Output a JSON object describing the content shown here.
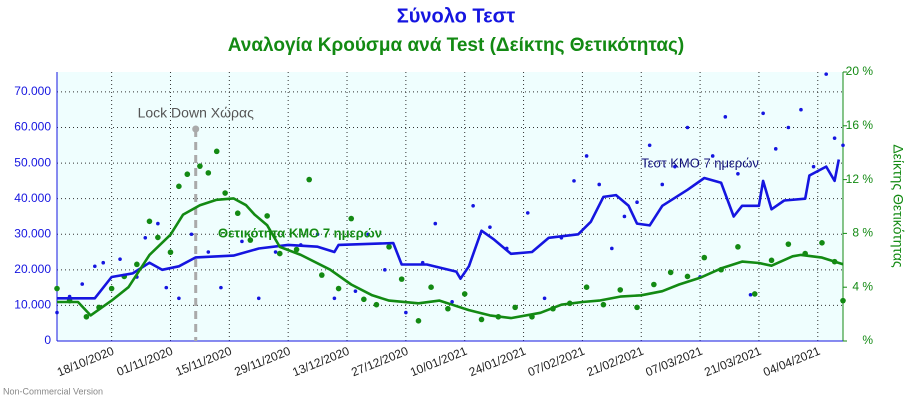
{
  "chart_data": {
    "type": "line",
    "title": "Σύνολο Τεστ",
    "subtitle": "Αναλογία Κρούσμα ανά Test (Δείκτης Θετικότητας)",
    "y2_label": "Δείκτης Θετικότητας",
    "footer": "Non-Commercial Version",
    "grid": true,
    "xlim": [
      "05/10/2020",
      "10/04/2021"
    ],
    "xticks": [
      "18/10/2020",
      "01/11/2020",
      "15/11/2020",
      "29/11/2020",
      "13/12/2020",
      "27/12/2020",
      "10/01/2021",
      "24/01/2021",
      "07/02/2021",
      "21/02/2021",
      "07/03/2021",
      "21/03/2021",
      "04/04/2021"
    ],
    "ylim": [
      0,
      75600
    ],
    "yticks": [
      0,
      {
        "value": 10000,
        "label": "10.000"
      },
      {
        "value": 20000,
        "label": "20.000"
      },
      {
        "value": 30000,
        "label": "30.000"
      },
      {
        "value": 40000,
        "label": "40.000"
      },
      {
        "value": 50000,
        "label": "50.000"
      },
      {
        "value": 60000,
        "label": "60.000"
      },
      {
        "value": 70000,
        "label": "70.000"
      }
    ],
    "y2lim": [
      0,
      20
    ],
    "y2ticks": [
      {
        "value": 0,
        "label": "%"
      },
      {
        "value": 4,
        "label": "4 %"
      },
      {
        "value": 8,
        "label": "8 %"
      },
      {
        "value": 12,
        "label": "12 %"
      },
      {
        "value": 16,
        "label": "16 %"
      },
      {
        "value": 20,
        "label": "20 %"
      }
    ],
    "annotations": [
      {
        "text": "Lock Down Χώρας",
        "x": "07/11/2020"
      }
    ],
    "series": [
      {
        "kind": "scatter",
        "color": "#1515e0",
        "axis": "y",
        "x": [
          "05/10/2020",
          "08/10/2020",
          "11/10/2020",
          "14/10/2020",
          "16/10/2020",
          "20/10/2020",
          "24/10/2020",
          "26/10/2020",
          "29/10/2020",
          "31/10/2020",
          "03/11/2020",
          "06/11/2020",
          "10/11/2020",
          "13/11/2020",
          "18/11/2020",
          "22/11/2020",
          "26/11/2020",
          "02/12/2020",
          "06/12/2020",
          "10/12/2020",
          "15/12/2020",
          "18/12/2020",
          "22/12/2020",
          "27/12/2020",
          "31/12/2020",
          "03/01/2021",
          "07/01/2021",
          "12/01/2021",
          "16/01/2021",
          "20/01/2021",
          "25/01/2021",
          "29/01/2021",
          "02/02/2021",
          "05/02/2021",
          "08/02/2021",
          "11/02/2021",
          "14/02/2021",
          "17/02/2021",
          "20/02/2021",
          "23/02/2021",
          "26/02/2021",
          "01/03/2021",
          "04/03/2021",
          "07/03/2021",
          "10/03/2021",
          "13/03/2021",
          "16/03/2021",
          "19/03/2021",
          "22/03/2021",
          "25/03/2021",
          "28/03/2021",
          "31/03/2021",
          "03/04/2021",
          "06/04/2021",
          "08/04/2021",
          "10/04/2021"
        ],
        "values": [
          8000,
          12500,
          16000,
          21000,
          22000,
          23000,
          18000,
          29000,
          33000,
          15000,
          12000,
          30000,
          25000,
          15000,
          28000,
          12000,
          25000,
          27000,
          30000,
          12000,
          14000,
          30000,
          20000,
          8000,
          22000,
          33000,
          11000,
          38000,
          32000,
          26000,
          36000,
          12000,
          29000,
          45000,
          52000,
          44000,
          26000,
          35000,
          39000,
          55000,
          44000,
          49000,
          60000,
          18000,
          52000,
          63000,
          47000,
          13000,
          64000,
          54000,
          60000,
          65000,
          49000,
          75000,
          57000,
          55000
        ]
      },
      {
        "kind": "scatter",
        "color": "#138a13",
        "axis": "y2",
        "x": [
          "05/10/2020",
          "08/10/2020",
          "12/10/2020",
          "15/10/2020",
          "18/10/2020",
          "21/10/2020",
          "24/10/2020",
          "27/10/2020",
          "29/10/2020",
          "01/11/2020",
          "03/11/2020",
          "05/11/2020",
          "08/11/2020",
          "10/11/2020",
          "12/11/2020",
          "14/11/2020",
          "17/11/2020",
          "20/11/2020",
          "24/11/2020",
          "27/11/2020",
          "01/12/2020",
          "04/12/2020",
          "07/12/2020",
          "11/12/2020",
          "14/12/2020",
          "17/12/2020",
          "20/12/2020",
          "23/12/2020",
          "26/12/2020",
          "30/12/2020",
          "02/01/2021",
          "06/01/2021",
          "10/01/2021",
          "14/01/2021",
          "18/01/2021",
          "22/01/2021",
          "26/01/2021",
          "31/01/2021",
          "04/02/2021",
          "08/02/2021",
          "12/02/2021",
          "16/02/2021",
          "20/02/2021",
          "24/02/2021",
          "28/02/2021",
          "04/03/2021",
          "08/03/2021",
          "12/03/2021",
          "16/03/2021",
          "20/03/2021",
          "24/03/2021",
          "28/03/2021",
          "01/04/2021",
          "05/04/2021",
          "08/04/2021",
          "10/04/2021"
        ],
        "values": [
          3.9,
          3.0,
          1.8,
          2.5,
          3.9,
          4.8,
          5.7,
          8.9,
          7.7,
          6.6,
          11.5,
          12.4,
          13.0,
          12.5,
          14.1,
          11.0,
          9.5,
          7.5,
          9.3,
          6.5,
          6.8,
          12.0,
          4.9,
          3.9,
          9.1,
          3.1,
          2.7,
          7.0,
          4.6,
          1.5,
          4.0,
          2.4,
          3.5,
          1.6,
          1.8,
          2.5,
          1.8,
          2.4,
          2.8,
          4.0,
          2.7,
          3.8,
          2.5,
          4.2,
          5.1,
          4.8,
          6.2,
          5.3,
          7.0,
          3.5,
          6.0,
          7.2,
          6.5,
          7.3,
          5.9,
          3.0
        ]
      },
      {
        "kind": "line",
        "name": "Τεστ ΚΜΟ 7 ημερών",
        "color": "#1515e0",
        "axis": "y",
        "x": [
          "05/10/2020",
          "14/10/2020",
          "18/10/2020",
          "23/10/2020",
          "27/10/2020",
          "30/10/2020",
          "03/11/2020",
          "07/11/2020",
          "16/11/2020",
          "22/11/2020",
          "29/11/2020",
          "06/12/2020",
          "10/12/2020",
          "11/12/2020",
          "24/12/2020",
          "26/12/2020",
          "01/01/2021",
          "08/01/2021",
          "09/01/2021",
          "11/01/2021",
          "14/01/2021",
          "17/01/2021",
          "21/01/2021",
          "26/01/2021",
          "30/01/2021",
          "06/02/2021",
          "09/02/2021",
          "12/02/2021",
          "15/02/2021",
          "18/02/2021",
          "20/02/2021",
          "23/02/2021",
          "26/02/2021",
          "04/03/2021",
          "08/03/2021",
          "12/03/2021",
          "15/03/2021",
          "17/03/2021",
          "21/03/2021",
          "22/03/2021",
          "24/03/2021",
          "27/03/2021",
          "01/04/2021",
          "02/04/2021",
          "06/04/2021",
          "08/04/2021",
          "09/04/2021"
        ],
        "values": [
          12000,
          12000,
          18000,
          19000,
          22000,
          20000,
          21000,
          23500,
          24000,
          26000,
          27000,
          26500,
          25000,
          27000,
          27500,
          21500,
          21500,
          19500,
          17500,
          21000,
          31000,
          28500,
          24500,
          25000,
          29000,
          30000,
          33500,
          40500,
          41000,
          38000,
          33000,
          32500,
          38000,
          42500,
          45800,
          44500,
          35000,
          38000,
          38000,
          45000,
          37000,
          39500,
          40000,
          46500,
          49000,
          45000,
          51000
        ]
      },
      {
        "kind": "line",
        "name": "Θετικότητα ΚΜΟ 7 ημερών",
        "color": "#138a13",
        "axis": "y2",
        "x": [
          "05/10/2020",
          "10/10/2020",
          "13/10/2020",
          "18/10/2020",
          "22/10/2020",
          "27/10/2020",
          "01/11/2020",
          "04/11/2020",
          "08/11/2020",
          "12/11/2020",
          "16/11/2020",
          "19/11/2020",
          "21/11/2020",
          "24/11/2020",
          "27/11/2020",
          "02/12/2020",
          "09/12/2020",
          "14/12/2020",
          "19/12/2020",
          "23/12/2020",
          "30/12/2020",
          "04/01/2021",
          "07/01/2021",
          "11/01/2021",
          "16/01/2021",
          "21/01/2021",
          "28/01/2021",
          "02/02/2021",
          "07/02/2021",
          "11/02/2021",
          "16/02/2021",
          "21/02/2021",
          "26/02/2021",
          "02/03/2021",
          "07/03/2021",
          "12/03/2021",
          "17/03/2021",
          "21/03/2021",
          "24/03/2021",
          "29/03/2021",
          "31/03/2021",
          "05/04/2021",
          "10/04/2021"
        ],
        "values": [
          2.9,
          2.9,
          1.9,
          3.0,
          4.0,
          6.4,
          7.9,
          9.4,
          10.1,
          10.5,
          10.6,
          10.1,
          9.4,
          8.6,
          7.0,
          6.4,
          5.3,
          4.2,
          3.4,
          3.0,
          2.8,
          3.0,
          2.7,
          2.3,
          1.9,
          1.7,
          2.1,
          2.7,
          2.9,
          3.0,
          3.3,
          3.4,
          3.7,
          4.2,
          4.7,
          5.4,
          5.9,
          5.8,
          5.6,
          6.3,
          6.4,
          6.2,
          5.7
        ]
      }
    ]
  }
}
